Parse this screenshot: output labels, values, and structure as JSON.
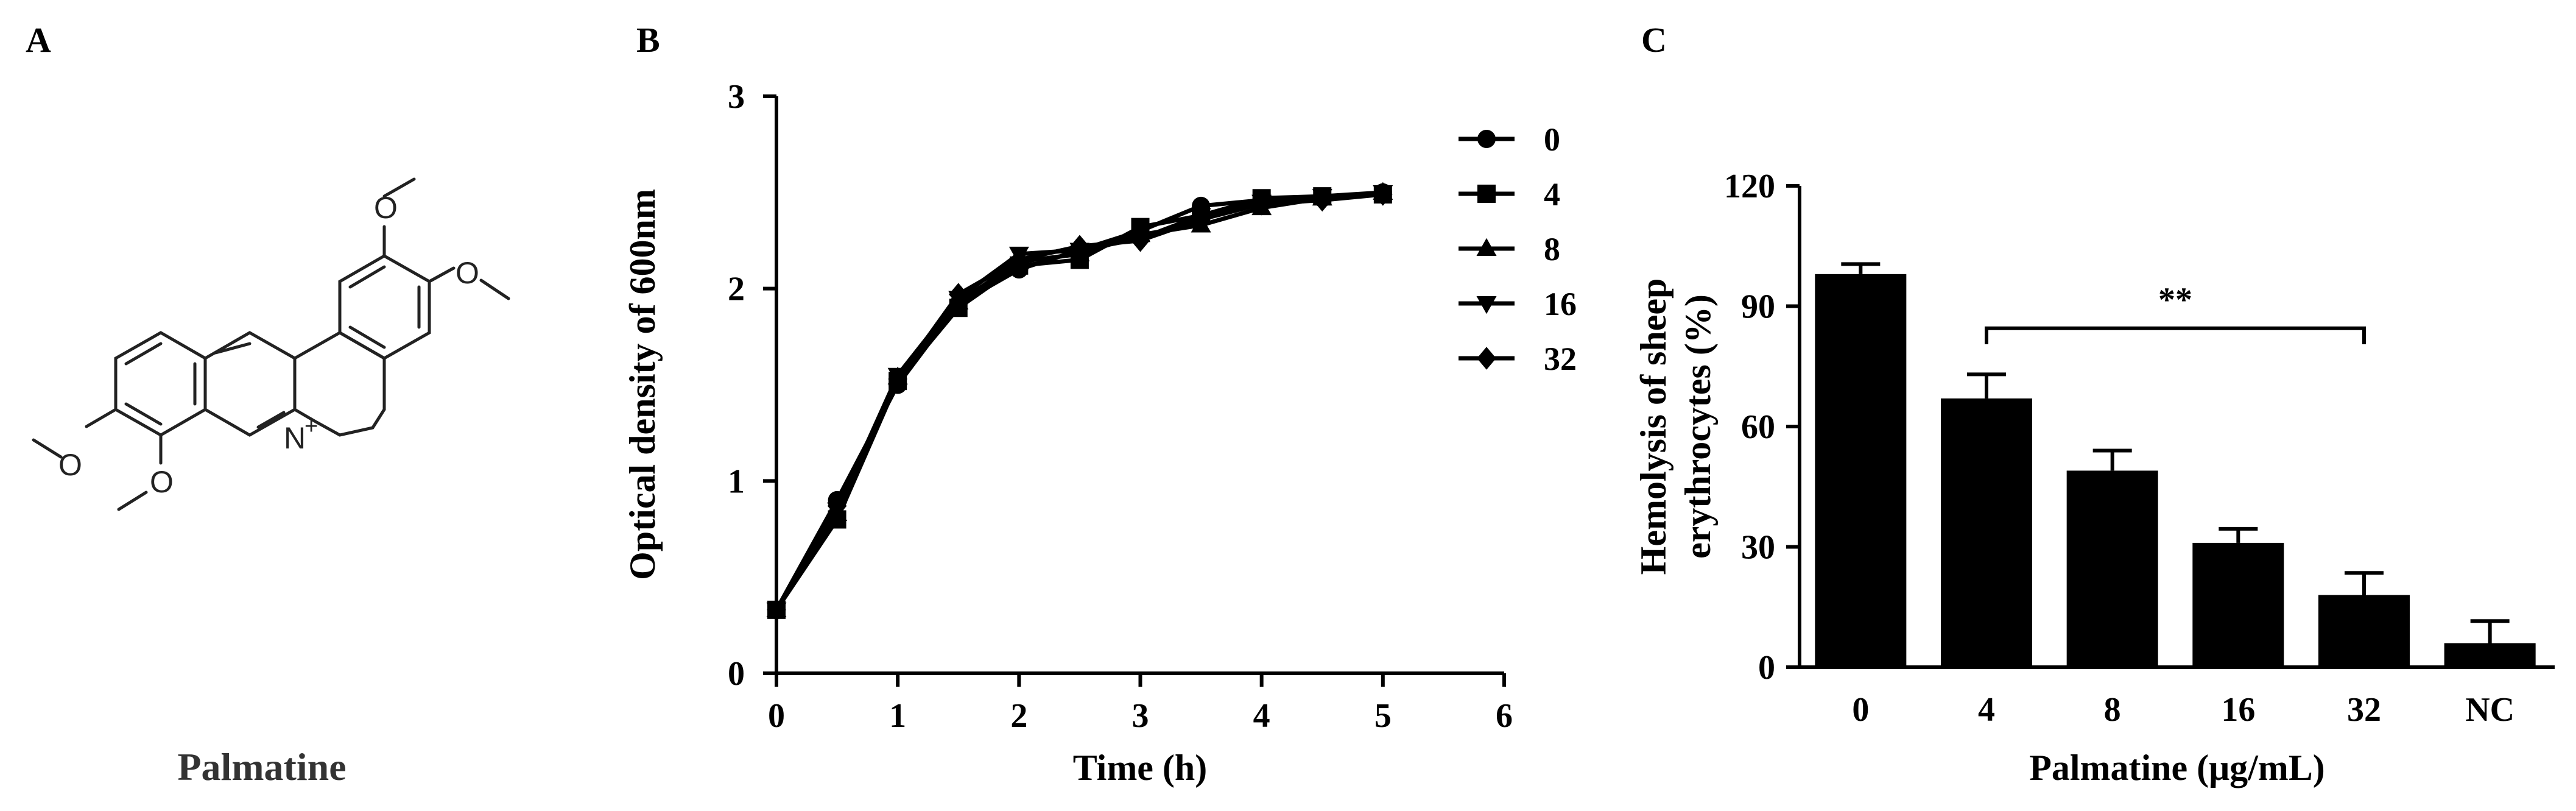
{
  "panels": {
    "a": {
      "letter": "A",
      "compound_name": "Palmatine",
      "atoms": {
        "o1": "O",
        "o2": "O",
        "o3": "O",
        "o4": "O",
        "n": "N",
        "charge": "+"
      }
    },
    "b": {
      "letter": "B"
    },
    "c": {
      "letter": "C"
    }
  },
  "chart_data": [
    {
      "type": "line",
      "panel": "B",
      "title": "",
      "xlabel": "Time (h)",
      "ylabel": "Optical density of 600nm",
      "xlim": [
        0,
        6
      ],
      "ylim": [
        0,
        3
      ],
      "x_ticks": [
        "0",
        "1",
        "2",
        "3",
        "4",
        "5",
        "6"
      ],
      "y_ticks": [
        "0",
        "1",
        "2",
        "3"
      ],
      "x": [
        0,
        0.5,
        1,
        1.5,
        2,
        2.5,
        3,
        3.5,
        4,
        4.5,
        5
      ],
      "legend_position": "right",
      "series": [
        {
          "name": "0",
          "marker": "circle",
          "values": [
            0.33,
            0.9,
            1.5,
            1.92,
            2.1,
            2.2,
            2.3,
            2.43,
            2.46,
            2.47,
            2.5
          ]
        },
        {
          "name": "4",
          "marker": "square",
          "values": [
            0.33,
            0.8,
            1.52,
            1.9,
            2.12,
            2.15,
            2.32,
            2.38,
            2.47,
            2.48,
            2.49
          ]
        },
        {
          "name": "8",
          "marker": "triangle-up",
          "values": [
            0.33,
            0.83,
            1.54,
            1.93,
            2.14,
            2.18,
            2.28,
            2.33,
            2.42,
            2.47,
            2.5
          ]
        },
        {
          "name": "16",
          "marker": "triangle-down",
          "values": [
            0.33,
            0.85,
            1.55,
            1.95,
            2.18,
            2.2,
            2.26,
            2.38,
            2.45,
            2.48,
            2.5
          ]
        },
        {
          "name": "32",
          "marker": "diamond",
          "values": [
            0.33,
            0.87,
            1.53,
            1.97,
            2.15,
            2.22,
            2.25,
            2.36,
            2.44,
            2.46,
            2.49
          ]
        }
      ]
    },
    {
      "type": "bar",
      "panel": "C",
      "title": "",
      "xlabel": "Palmatine (μg/mL)",
      "ylabel_lines": [
        "Hemolysis of sheep",
        "erythrocytes (%)"
      ],
      "ylim": [
        0,
        120
      ],
      "y_ticks": [
        "0",
        "30",
        "60",
        "90",
        "120"
      ],
      "categories": [
        "0",
        "4",
        "8",
        "16",
        "32",
        "NC"
      ],
      "values": [
        98,
        67,
        49,
        31,
        18,
        6
      ],
      "errors": [
        2.5,
        6,
        5,
        3.5,
        5.5,
        5.5
      ],
      "annotation": {
        "text": "**",
        "from_category": "4",
        "to_category": "32"
      }
    }
  ]
}
